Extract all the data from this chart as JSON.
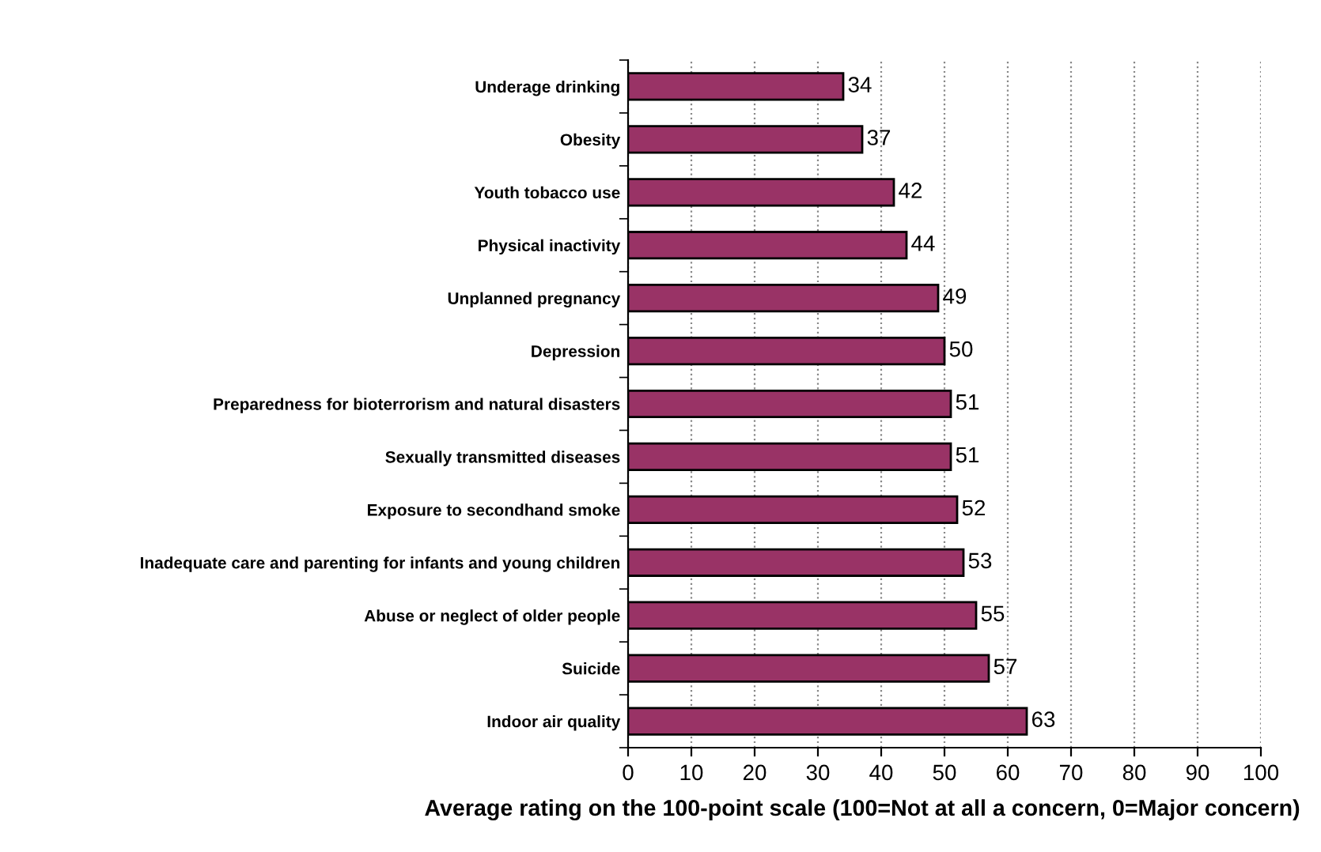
{
  "chart_data": {
    "type": "bar",
    "orientation": "horizontal",
    "categories": [
      "Underage drinking",
      "Obesity",
      "Youth tobacco use",
      "Physical inactivity",
      "Unplanned pregnancy",
      "Depression",
      "Preparedness for bioterrorism and natural disasters",
      "Sexually transmitted diseases",
      "Exposure to secondhand smoke",
      "Inadequate care and parenting for infants and young children",
      "Abuse or neglect of older people",
      "Suicide",
      "Indoor air quality"
    ],
    "values": [
      34,
      37,
      42,
      44,
      49,
      50,
      51,
      51,
      52,
      53,
      55,
      57,
      63
    ],
    "color": "#993366",
    "data_labels": true,
    "grid": "x",
    "xlim": [
      0,
      100
    ],
    "xticks": [
      0,
      10,
      20,
      30,
      40,
      50,
      60,
      70,
      80,
      90,
      100
    ],
    "xlabel": "Average rating on the 100-point scale (100=Not at all a concern, 0=Major concern)"
  }
}
